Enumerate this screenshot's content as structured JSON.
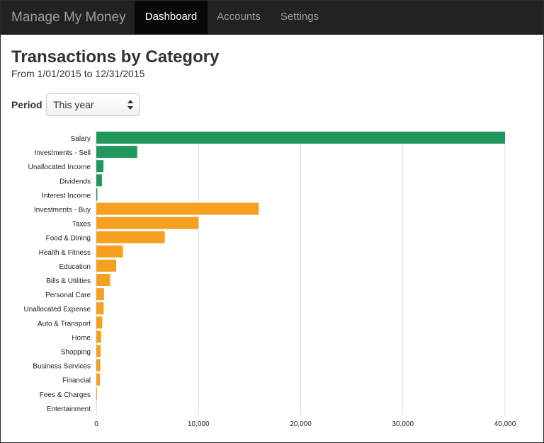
{
  "navbar": {
    "brand": "Manage My Money",
    "items": [
      {
        "label": "Dashboard",
        "active": true
      },
      {
        "label": "Accounts",
        "active": false
      },
      {
        "label": "Settings",
        "active": false
      }
    ]
  },
  "page": {
    "title": "Transactions by Category",
    "subtitle": "From 1/01/2015 to 12/31/2015"
  },
  "period": {
    "label": "Period",
    "selected": "This year"
  },
  "colors": {
    "income": "#21975e",
    "expense": "#f6a020",
    "gridline": "#dddddd",
    "navbar_bg": "#222222"
  },
  "chart_data": {
    "type": "bar",
    "orientation": "horizontal",
    "title": "",
    "xlabel": "",
    "ylabel": "",
    "xlim": [
      0,
      40000
    ],
    "xticks": [
      0,
      10000,
      20000,
      30000,
      40000
    ],
    "xtick_labels": [
      "0",
      "10,000",
      "20,000",
      "30,000",
      "40,000"
    ],
    "grid": true,
    "legend": "none",
    "categories": [
      "Salary",
      "Investments - Sell",
      "Unallocated Income",
      "Dividends",
      "Interest Income",
      "Investments - Buy",
      "Taxes",
      "Food & Dining",
      "Health & Fitness",
      "Education",
      "Bills & Utilities",
      "Personal Care",
      "Unallocated Expense",
      "Auto & Transport",
      "Home",
      "Shopping",
      "Business Services",
      "Financial",
      "Fees & Charges",
      "Entertainment"
    ],
    "values": [
      40000,
      4000,
      700,
      550,
      100,
      15900,
      10000,
      6700,
      2600,
      1950,
      1350,
      750,
      720,
      580,
      470,
      420,
      390,
      350,
      20,
      0
    ],
    "kinds": [
      "income",
      "income",
      "income",
      "income",
      "income",
      "expense",
      "expense",
      "expense",
      "expense",
      "expense",
      "expense",
      "expense",
      "expense",
      "expense",
      "expense",
      "expense",
      "expense",
      "expense",
      "expense",
      "expense"
    ]
  }
}
